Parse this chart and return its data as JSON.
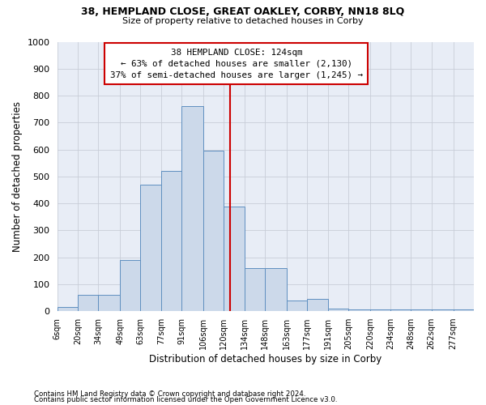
{
  "title": "38, HEMPLAND CLOSE, GREAT OAKLEY, CORBY, NN18 8LQ",
  "subtitle": "Size of property relative to detached houses in Corby",
  "xlabel": "Distribution of detached houses by size in Corby",
  "ylabel": "Number of detached properties",
  "footnote1": "Contains HM Land Registry data © Crown copyright and database right 2024.",
  "footnote2": "Contains public sector information licensed under the Open Government Licence v3.0.",
  "annotation_line0": "38 HEMPLAND CLOSE: 124sqm",
  "annotation_line1": "← 63% of detached houses are smaller (2,130)",
  "annotation_line2": "37% of semi-detached houses are larger (1,245) →",
  "marker_value": 124,
  "bar_color": "#ccd9ea",
  "bar_edge_color": "#5f8fc0",
  "marker_color": "#cc0000",
  "grid_color": "#c8cdd8",
  "background_color": "#e8edf6",
  "annotation_edge_color": "#cc0000",
  "bins": [
    6,
    20,
    34,
    49,
    63,
    77,
    91,
    106,
    120,
    134,
    148,
    163,
    177,
    191,
    205,
    220,
    234,
    248,
    262,
    277,
    291
  ],
  "values": [
    15,
    62,
    62,
    190,
    470,
    520,
    760,
    595,
    390,
    160,
    160,
    40,
    45,
    10,
    7,
    7,
    7,
    7,
    7,
    7
  ],
  "ylim": [
    0,
    1000
  ],
  "yticks": [
    0,
    100,
    200,
    300,
    400,
    500,
    600,
    700,
    800,
    900,
    1000
  ]
}
